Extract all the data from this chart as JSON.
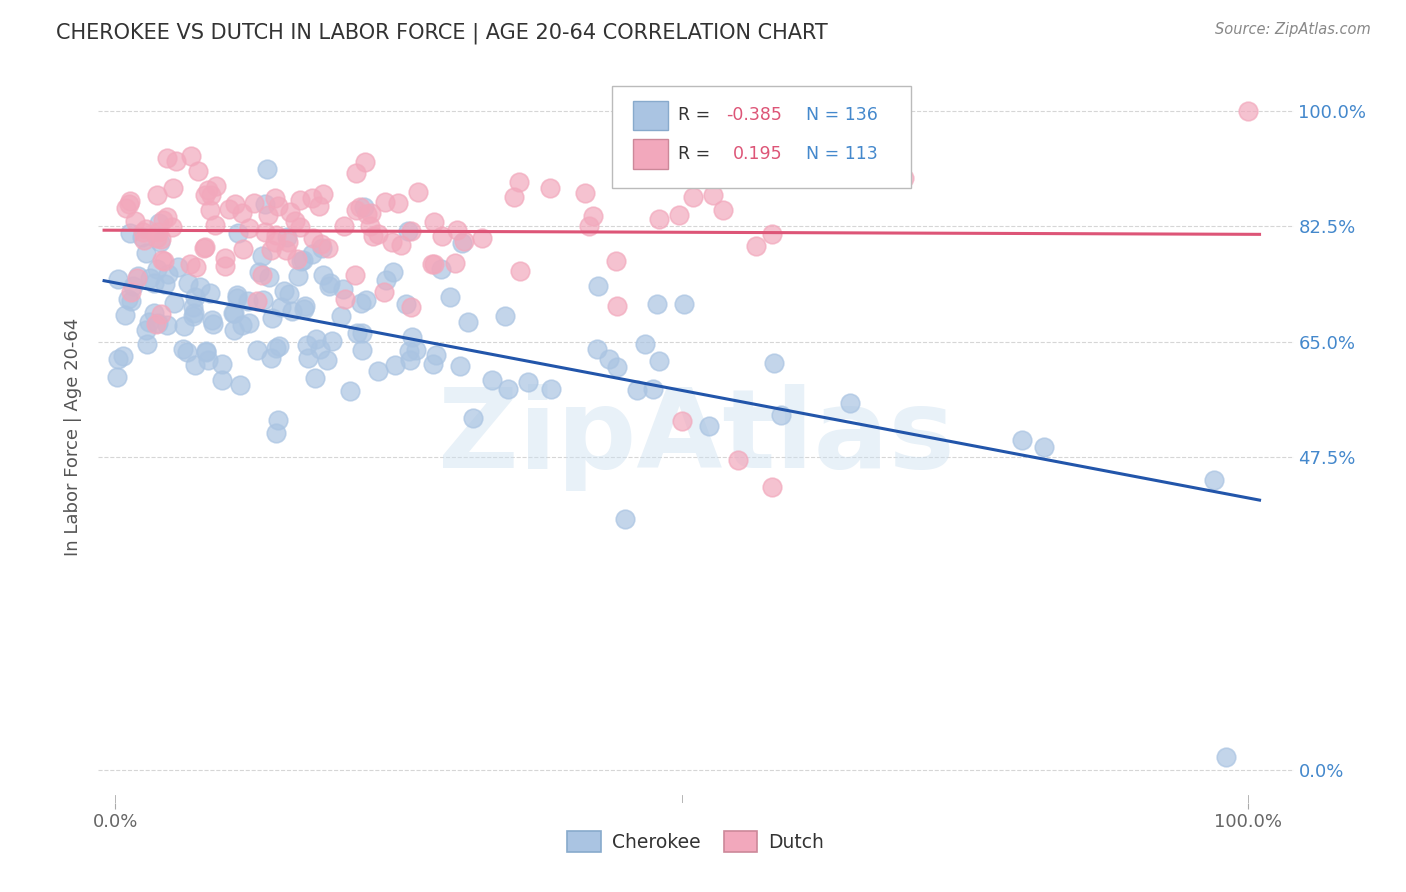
{
  "title": "CHEROKEE VS DUTCH IN LABOR FORCE | AGE 20-64 CORRELATION CHART",
  "source": "Source: ZipAtlas.com",
  "ylabel": "In Labor Force | Age 20-64",
  "ytick_values": [
    0.0,
    0.475,
    0.65,
    0.825,
    1.0
  ],
  "xtick_labels": [
    "0.0%",
    "100.0%"
  ],
  "cherokee_color": "#aac4e2",
  "dutch_color": "#f2a8bc",
  "cherokee_line_color": "#2255aa",
  "dutch_line_color": "#dd5577",
  "background_color": "#ffffff",
  "grid_color": "#cccccc",
  "R_cherokee": -0.385,
  "N_cherokee": 136,
  "R_dutch": 0.195,
  "N_dutch": 113,
  "legend_label_cherokee": "Cherokee",
  "legend_label_dutch": "Dutch",
  "watermark": "ZipAtlas",
  "rtext_color": "#dd5577",
  "ntext_color": "#4488cc",
  "title_color": "#333333",
  "source_color": "#888888",
  "ylabel_color": "#555555",
  "ytick_color": "#4488cc"
}
